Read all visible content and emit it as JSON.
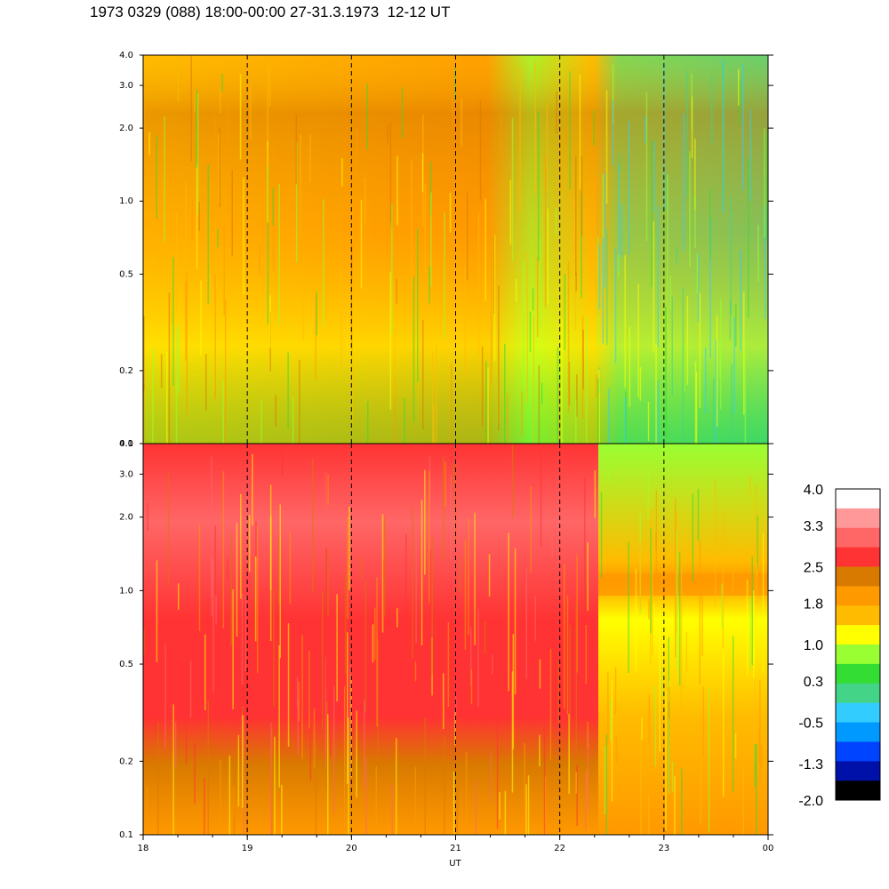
{
  "title": "1973 0329 (088) 18:00-00:00 27-31.3.1973  12-12 UT",
  "chart_data": {
    "type": "heatmap",
    "xlabel": "UT",
    "x_ticks": [
      "18",
      "19",
      "20",
      "21",
      "22",
      "23",
      "00"
    ],
    "xlim": [
      18,
      24
    ],
    "y_scale": "log",
    "panels": [
      {
        "id": "upper",
        "ylim": [
          0.1,
          4.0
        ],
        "y_ticks": [
          "4.0",
          "3.0",
          "2.0",
          "1.0",
          "0.5",
          "0.2",
          "0.1"
        ],
        "vertical_dashed_lines_at": [
          19,
          20,
          21,
          22,
          23
        ]
      },
      {
        "id": "lower",
        "ylim": [
          0.1,
          4.0
        ],
        "y_ticks": [
          "4.0",
          "3.0",
          "2.0",
          "1.0",
          "0.5",
          "0.2",
          "0.1"
        ],
        "vertical_dashed_lines_at": [
          19,
          20,
          21,
          22,
          23
        ]
      }
    ],
    "colorbar": {
      "range": [
        -2.0,
        4.0
      ],
      "labels": [
        "4.0",
        "3.3",
        "2.5",
        "1.8",
        "1.0",
        "0.3",
        "-0.5",
        "-1.3",
        "-2.0"
      ],
      "colors": [
        "#ffffff",
        "#ff9999",
        "#ff6666",
        "#ff3333",
        "#d97a00",
        "#ff9900",
        "#ffbb00",
        "#ffff00",
        "#99ff33",
        "#33dd33",
        "#44d488",
        "#33ccff",
        "#0099ff",
        "#0044ff",
        "#0011aa",
        "#000000"
      ]
    }
  }
}
